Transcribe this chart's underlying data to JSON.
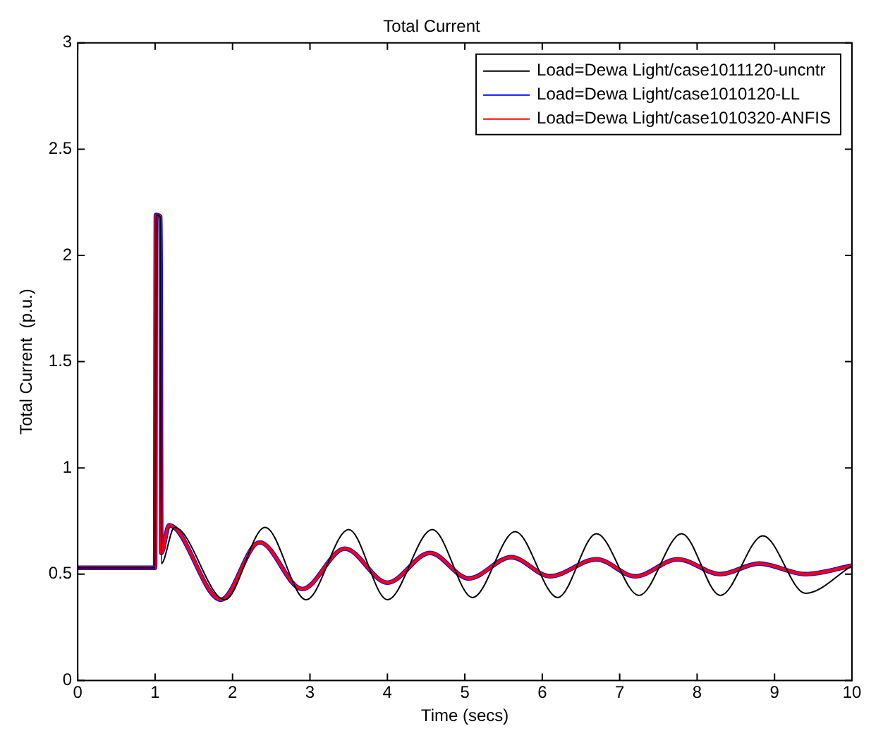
{
  "chart_data": {
    "type": "line",
    "title": "Total Current",
    "xlabel": "Time (secs)",
    "ylabel": "Total Current  (p.u.)",
    "xlim": [
      0,
      10
    ],
    "xticks": [
      0,
      1,
      2,
      3,
      4,
      5,
      6,
      7,
      8,
      9,
      10
    ],
    "ylim": [
      0,
      3
    ],
    "yticks": [
      0,
      0.5,
      1,
      1.5,
      2,
      2.5,
      3
    ],
    "grid": false,
    "legend": "top right",
    "marker": "none",
    "line_style": "solid",
    "series": [
      {
        "name": "Load=Dewa Light/case1011120-uncntr",
        "color": "#000000",
        "x": [
          0,
          1.0,
          1.01,
          1.07,
          1.08,
          1.25,
          1.9,
          2.42,
          2.95,
          3.5,
          4.0,
          4.58,
          5.1,
          5.65,
          6.2,
          6.7,
          7.25,
          7.8,
          8.3,
          8.85,
          9.4,
          10
        ],
        "values": [
          0.53,
          0.53,
          2.19,
          2.18,
          0.55,
          0.72,
          0.38,
          0.72,
          0.38,
          0.71,
          0.38,
          0.71,
          0.39,
          0.7,
          0.39,
          0.69,
          0.4,
          0.69,
          0.4,
          0.68,
          0.41,
          0.54
        ]
      },
      {
        "name": "Load=Dewa Light/case1010120-LL",
        "color": "#0000ff",
        "x": [
          0,
          1.0,
          1.01,
          1.07,
          1.08,
          1.18,
          1.85,
          2.35,
          2.9,
          3.45,
          4.0,
          4.55,
          5.05,
          5.6,
          6.1,
          6.7,
          7.2,
          7.75,
          8.3,
          8.8,
          9.4,
          10
        ],
        "values": [
          0.53,
          0.53,
          2.19,
          2.18,
          0.6,
          0.73,
          0.38,
          0.65,
          0.43,
          0.62,
          0.46,
          0.6,
          0.48,
          0.58,
          0.49,
          0.57,
          0.49,
          0.57,
          0.5,
          0.55,
          0.5,
          0.54
        ]
      },
      {
        "name": "Load=Dewa Light/case1010320-ANFIS",
        "color": "#ff0000",
        "x": [
          0,
          1.0,
          1.01,
          1.07,
          1.08,
          1.18,
          1.85,
          2.35,
          2.9,
          3.45,
          4.0,
          4.55,
          5.05,
          5.6,
          6.1,
          6.7,
          7.2,
          7.75,
          8.3,
          8.8,
          9.4,
          10
        ],
        "values": [
          0.53,
          0.53,
          2.19,
          2.18,
          0.6,
          0.73,
          0.38,
          0.65,
          0.43,
          0.62,
          0.46,
          0.6,
          0.48,
          0.58,
          0.49,
          0.57,
          0.49,
          0.57,
          0.5,
          0.55,
          0.5,
          0.54
        ]
      }
    ]
  }
}
